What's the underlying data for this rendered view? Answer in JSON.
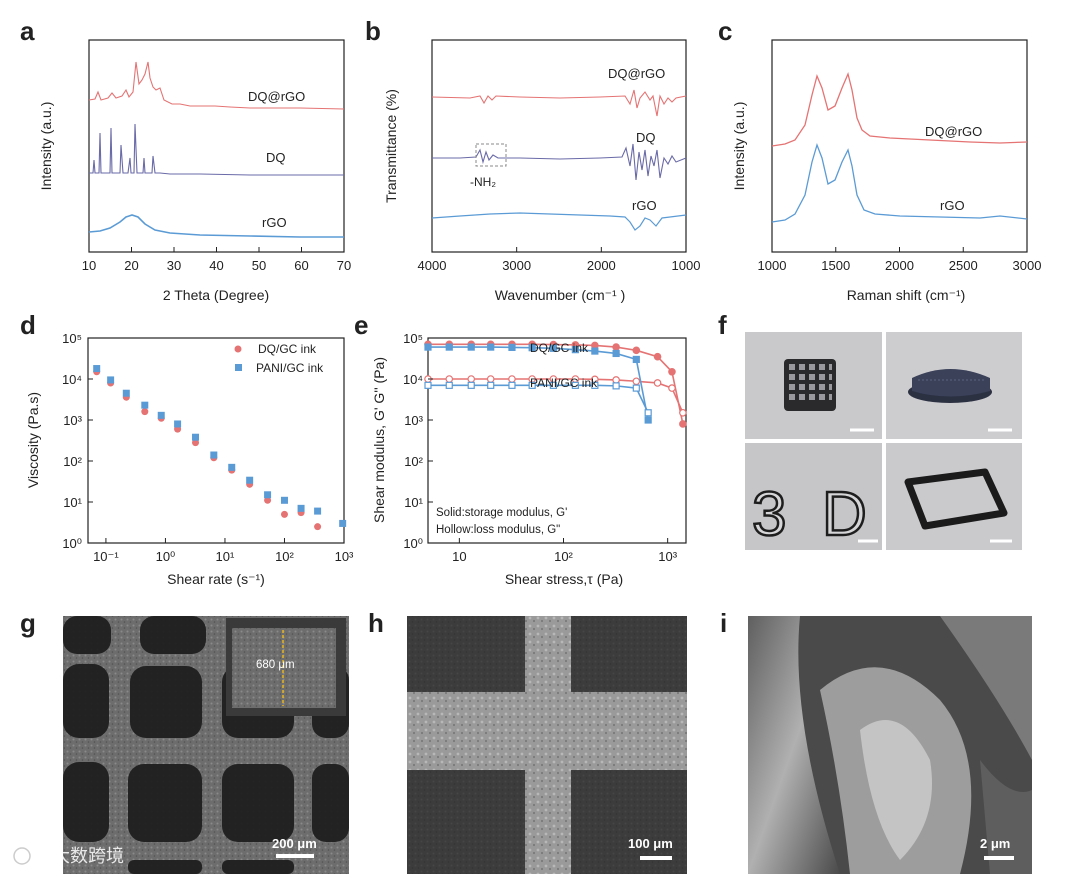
{
  "panel_letters": [
    "a",
    "b",
    "c",
    "d",
    "e",
    "f",
    "g",
    "h",
    "i"
  ],
  "colors": {
    "red": "#e57373",
    "blue": "#5b9bd5",
    "purple": "#6a6aa8",
    "dark": "#222222"
  },
  "watermark": "大数跨境",
  "chart_data": [
    {
      "id": "a",
      "type": "line",
      "xlabel": "2 Theta (Degree)",
      "ylabel": "Intensity (a.u.)",
      "xlim": [
        10,
        70
      ],
      "xticks": [
        "10",
        "20",
        "30",
        "40",
        "50",
        "60",
        "70"
      ],
      "series": [
        {
          "name": "DQ@rGO",
          "color": "#e57373"
        },
        {
          "name": "DQ",
          "color": "#6a6aa8"
        },
        {
          "name": "rGO",
          "color": "#5b9bd5"
        }
      ]
    },
    {
      "id": "b",
      "type": "line",
      "xlabel": "Wavenumber (cm⁻¹ )",
      "ylabel": "Transmittance (%)",
      "xlim": [
        4000,
        1000
      ],
      "xticks": [
        "4000",
        "3000",
        "2000",
        "1000"
      ],
      "series": [
        {
          "name": "DQ@rGO",
          "color": "#e57373"
        },
        {
          "name": "DQ",
          "color": "#6a6aa8"
        },
        {
          "name": "rGO",
          "color": "#5b9bd5"
        }
      ],
      "annotation": "-NH₂"
    },
    {
      "id": "c",
      "type": "line",
      "xlabel": "Raman shift (cm⁻¹)",
      "ylabel": "Intensity (a.u.)",
      "xlim": [
        1000,
        3000
      ],
      "xticks": [
        "1000",
        "1500",
        "2000",
        "2500",
        "3000"
      ],
      "series": [
        {
          "name": "DQ@rGO",
          "color": "#e57373"
        },
        {
          "name": "rGO",
          "color": "#5b9bd5"
        }
      ]
    },
    {
      "id": "d",
      "type": "scatter",
      "xscale": "log",
      "yscale": "log",
      "xlabel": "Shear rate (s⁻¹)",
      "ylabel": "Viscosity (Pa.s)",
      "xlim": [
        0.05,
        1000
      ],
      "ylim": [
        1,
        100000
      ],
      "xticks": [
        "10⁻¹",
        "10⁰",
        "10¹",
        "10²",
        "10³"
      ],
      "yticks": [
        "10⁰",
        "10¹",
        "10²",
        "10³",
        "10⁴",
        "10⁵"
      ],
      "series": [
        {
          "name": "DQ/GC ink",
          "color": "#e57373",
          "x": [
            0.07,
            0.12,
            0.22,
            0.45,
            0.85,
            1.6,
            3.2,
            6.5,
            13,
            26,
            52,
            100,
            190,
            360
          ],
          "y": [
            15000,
            8000,
            3600,
            1600,
            1100,
            600,
            280,
            120,
            60,
            27,
            11,
            5,
            5.5,
            2.5
          ]
        },
        {
          "name": "PANI/GC ink",
          "color": "#5b9bd5",
          "x": [
            0.07,
            0.12,
            0.22,
            0.45,
            0.85,
            1.6,
            3.2,
            6.5,
            13,
            26,
            52,
            100,
            190,
            360,
            950
          ],
          "y": [
            18000,
            9500,
            4500,
            2300,
            1300,
            800,
            380,
            140,
            70,
            34,
            15,
            11,
            7,
            6,
            3
          ]
        }
      ]
    },
    {
      "id": "e",
      "type": "line",
      "xscale": "log",
      "yscale": "log",
      "xlabel": "Shear stress,τ (Pa)",
      "ylabel": "Shear modulus, G' G'' (Pa)",
      "xlim": [
        5,
        1500
      ],
      "ylim": [
        1,
        100000
      ],
      "xticks": [
        "10",
        "10²",
        "10³"
      ],
      "yticks": [
        "10⁰",
        "10¹",
        "10²",
        "10³",
        "10⁴",
        "10⁵"
      ],
      "notes": [
        "Solid:storage modulus, G'",
        "Hollow:loss modulus, G\""
      ],
      "series": [
        {
          "name": "DQ/GC ink",
          "color": "#e57373",
          "x": [
            5,
            8,
            13,
            20,
            32,
            50,
            80,
            130,
            200,
            320,
            500,
            800,
            1100,
            1400
          ],
          "Gp": [
            70000,
            70000,
            70000,
            70000,
            70000,
            70000,
            69000,
            68000,
            66000,
            60000,
            50000,
            35000,
            15000,
            800
          ],
          "Gpp": [
            10000,
            10000,
            10000,
            10000,
            10000,
            10000,
            10000,
            10000,
            9800,
            9500,
            8800,
            8000,
            6000,
            1500
          ]
        },
        {
          "name": "PANI/GC ink",
          "color": "#5b9bd5",
          "x": [
            5,
            8,
            13,
            20,
            32,
            50,
            80,
            130,
            200,
            320,
            500,
            650
          ],
          "Gp": [
            60000,
            60000,
            60000,
            60000,
            59000,
            58000,
            56000,
            52000,
            48000,
            42000,
            30000,
            1000
          ],
          "Gpp": [
            7000,
            7000,
            7000,
            7000,
            7000,
            7000,
            7000,
            7000,
            7000,
            6800,
            6000,
            1500
          ]
        }
      ]
    }
  ],
  "panels": {
    "a": {
      "labels": [
        "DQ@rGO",
        "DQ",
        "rGO"
      ]
    },
    "b": {
      "labels": [
        "DQ@rGO",
        "DQ",
        "rGO"
      ],
      "annotation": "-NH₂"
    },
    "c": {
      "labels": [
        "DQ@rGO",
        "rGO"
      ]
    },
    "d": {
      "legend": [
        "DQ/GC ink",
        "PANI/GC ink"
      ]
    },
    "e": {
      "labels": [
        "DQ/GC ink",
        "PANI/GC ink"
      ],
      "notes": [
        "Solid:storage modulus, G'",
        "Hollow:loss modulus, G\""
      ]
    },
    "f": {
      "texts": [
        "3",
        "D"
      ]
    },
    "g": {
      "scalebar": "200 μm",
      "inset": "680 μm"
    },
    "h": {
      "scalebar": "100 μm"
    },
    "i": {
      "scalebar": "2 μm"
    }
  }
}
